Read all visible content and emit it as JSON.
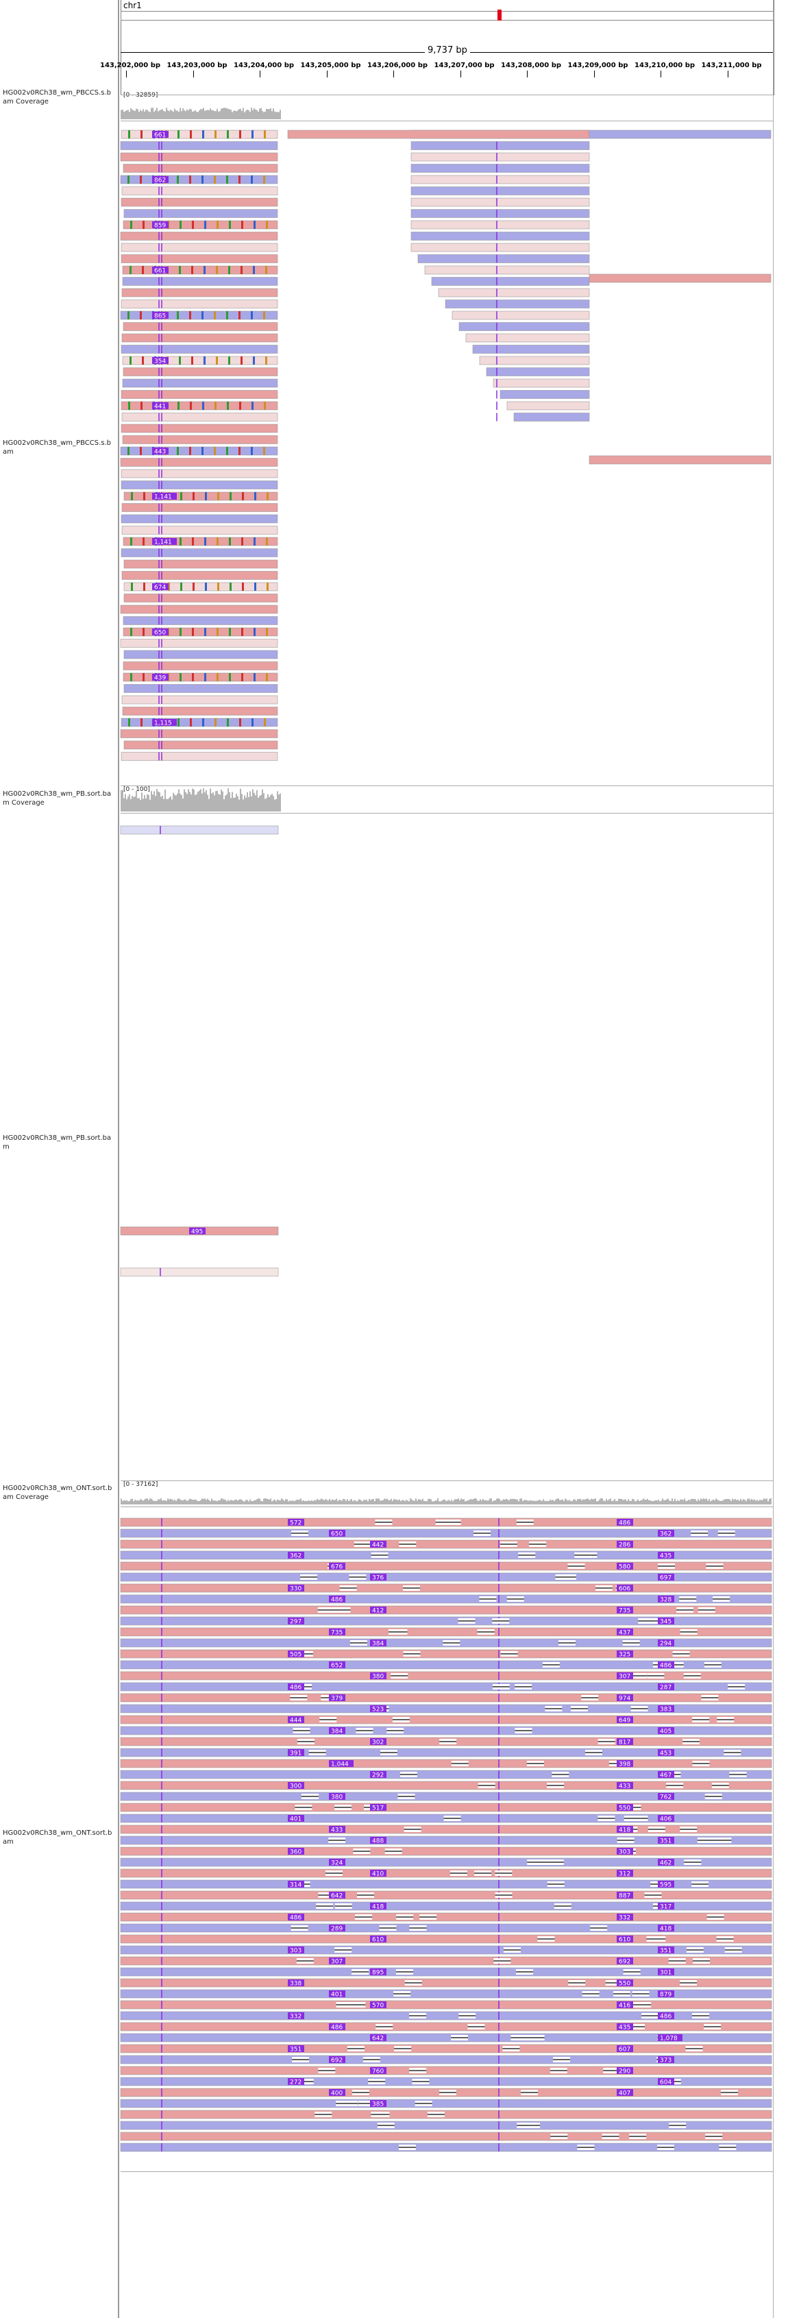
{
  "ruler": {
    "chromosome": "chr1",
    "span": "9,737 bp",
    "ticks": [
      "143,202,000 bp",
      "143,203,000 bp",
      "143,204,000 bp",
      "143,205,000 bp",
      "143,206,000 bp",
      "143,207,000 bp",
      "143,208,000 bp",
      "143,209,000 bp",
      "143,210,000 bp",
      "143,211,000 bp"
    ]
  },
  "tracks": {
    "pbccs_coverage": {
      "label": "HG002v0RCh38_wm_PBCCS.s.bam Coverage",
      "range": "[0 - 32859]"
    },
    "pbccs_reads": {
      "label": "HG002v0RCh38_wm_PBCCS.s.bam"
    },
    "pb_coverage": {
      "label": "HG002v0RCh38_wm_PB.sort.bam Coverage",
      "range": "[0 - 100]"
    },
    "pb_reads": {
      "label": "HG002v0RCh38_wm_PB.sort.bam"
    },
    "ont_coverage": {
      "label": "HG002v0RCh38_wm_ONT.sort.bam Coverage",
      "range": "[0 - 37162]"
    },
    "ont_reads": {
      "label": "HG002v0RCh38_wm_ONT.sort.bam"
    }
  },
  "insertion_labels": {
    "pbccs": [
      "661",
      "862",
      "859",
      "661",
      "865",
      "354",
      "441",
      "443",
      "1,141",
      "1,141",
      "674",
      "650",
      "439",
      "1,115"
    ],
    "pb": [
      "495"
    ],
    "ont": [
      "572",
      "486",
      "650",
      "362",
      "442",
      "286",
      "362",
      "435",
      "676",
      "580",
      "376",
      "697",
      "330",
      "606",
      "486",
      "328",
      "412",
      "735",
      "297",
      "345",
      "735",
      "437",
      "384",
      "294",
      "505",
      "325",
      "652",
      "486",
      "380",
      "307",
      "486",
      "287",
      "379",
      "974",
      "523",
      "383",
      "444",
      "649",
      "384",
      "405",
      "302",
      "817",
      "391",
      "453",
      "1,044",
      "398",
      "292",
      "467",
      "300",
      "433",
      "380",
      "762",
      "517",
      "550",
      "401",
      "406",
      "433",
      "418",
      "488",
      "351",
      "360",
      "303",
      "324",
      "462",
      "410",
      "312",
      "314",
      "595",
      "642",
      "887",
      "418",
      "317",
      "486",
      "332",
      "289",
      "418",
      "610",
      "610",
      "303",
      "351",
      "307",
      "692",
      "895",
      "301",
      "338",
      "550",
      "401",
      "879",
      "570",
      "416",
      "332",
      "486",
      "486",
      "435",
      "642",
      "1,078",
      "351",
      "607",
      "692",
      "373",
      "760",
      "290",
      "272",
      "604",
      "400",
      "407",
      "385"
    ]
  },
  "colors": {
    "forward_read": "#e8a0a0",
    "reverse_read": "#a8a8e6",
    "insertion": "#8a2be2",
    "coverage": "#b4b4b4"
  }
}
